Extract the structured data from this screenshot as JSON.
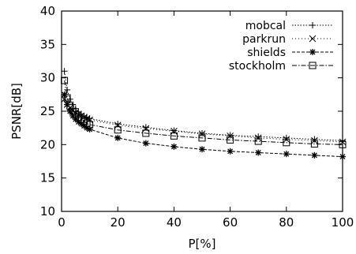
{
  "chart_data": {
    "type": "line",
    "xlabel": "P[%]",
    "ylabel": "PSNR[dB]",
    "xlim": [
      0,
      100
    ],
    "ylim": [
      10,
      40
    ],
    "x_ticks": [
      "0",
      "20",
      "40",
      "60",
      "80",
      "100"
    ],
    "y_ticks": [
      "10",
      "15",
      "20",
      "25",
      "30",
      "35",
      "40"
    ],
    "legend_position": "top-right",
    "grid": false,
    "series": [
      {
        "name": "mobcal",
        "marker": "plus",
        "x": [
          1,
          2,
          3,
          4,
          5,
          6,
          7,
          8,
          9,
          10,
          20,
          30,
          40,
          50,
          60,
          70,
          80,
          90,
          100
        ],
        "values": [
          31.0,
          28.2,
          26.8,
          26.0,
          25.4,
          24.9,
          24.6,
          24.3,
          24.1,
          23.9,
          23.1,
          22.6,
          22.1,
          21.7,
          21.4,
          21.2,
          21.0,
          20.8,
          20.6
        ]
      },
      {
        "name": "parkrun",
        "marker": "cross",
        "x": [
          1,
          2,
          3,
          4,
          5,
          6,
          7,
          8,
          9,
          10,
          20,
          30,
          40,
          50,
          60,
          70,
          80,
          90,
          100
        ],
        "values": [
          26.8,
          26.0,
          25.5,
          25.1,
          24.8,
          24.5,
          24.3,
          24.1,
          23.9,
          23.7,
          22.9,
          22.4,
          22.0,
          21.6,
          21.3,
          21.0,
          20.8,
          20.6,
          20.4
        ]
      },
      {
        "name": "shields",
        "marker": "star",
        "x": [
          1,
          2,
          3,
          4,
          5,
          6,
          7,
          8,
          9,
          10,
          20,
          30,
          40,
          50,
          60,
          70,
          80,
          90,
          100
        ],
        "values": [
          27.5,
          26.0,
          25.0,
          24.3,
          23.8,
          23.4,
          23.1,
          22.8,
          22.5,
          22.3,
          21.0,
          20.2,
          19.7,
          19.3,
          19.0,
          18.8,
          18.6,
          18.4,
          18.2
        ]
      },
      {
        "name": "stockholm",
        "marker": "square",
        "x": [
          1,
          2,
          3,
          4,
          5,
          6,
          7,
          8,
          9,
          10,
          20,
          30,
          40,
          50,
          60,
          70,
          80,
          90,
          100
        ],
        "values": [
          29.6,
          27.0,
          25.8,
          25.0,
          24.5,
          24.1,
          23.8,
          23.5,
          23.2,
          23.0,
          22.2,
          21.7,
          21.3,
          21.0,
          20.7,
          20.5,
          20.3,
          20.1,
          20.0
        ]
      }
    ]
  }
}
